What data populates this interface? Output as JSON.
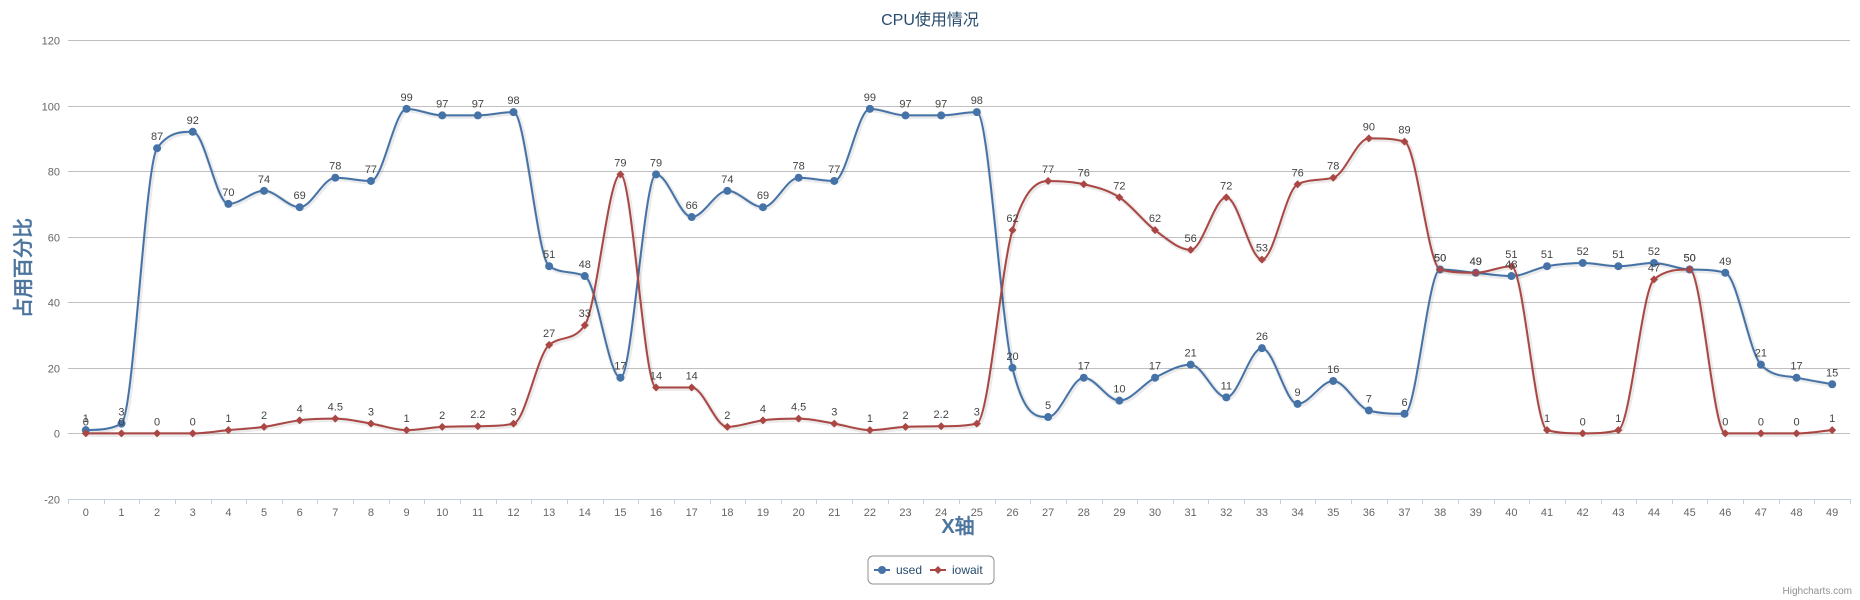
{
  "credits": "Highcharts.com",
  "chart_data": {
    "type": "line",
    "title": "CPU使用情况",
    "xlabel": "X轴",
    "ylabel": "占用百分比",
    "ylim": [
      -20,
      120
    ],
    "yticks": [
      -20,
      0,
      20,
      40,
      60,
      80,
      100,
      120
    ],
    "categories": [
      "0",
      "1",
      "2",
      "3",
      "4",
      "5",
      "6",
      "7",
      "8",
      "9",
      "10",
      "11",
      "12",
      "13",
      "14",
      "15",
      "16",
      "17",
      "18",
      "19",
      "20",
      "21",
      "22",
      "23",
      "24",
      "25",
      "26",
      "27",
      "28",
      "29",
      "30",
      "31",
      "32",
      "33",
      "34",
      "35",
      "36",
      "37",
      "38",
      "39",
      "40",
      "41",
      "42",
      "43",
      "44",
      "45",
      "46",
      "47",
      "48",
      "49"
    ],
    "grid": true,
    "legend_position": "bottom-center",
    "series": [
      {
        "name": "used",
        "color": "#4572a7",
        "marker": "circle",
        "values": [
          1,
          3,
          87,
          92,
          70,
          74,
          69,
          78,
          77,
          99,
          97,
          97,
          98,
          51,
          48,
          17,
          79,
          66,
          74,
          69,
          78,
          77,
          99,
          97,
          97,
          98,
          20,
          5,
          17,
          10,
          17,
          21,
          11,
          26,
          9,
          16,
          7,
          6,
          50,
          49,
          48,
          51,
          52,
          51,
          52,
          50,
          49,
          21,
          17,
          15
        ],
        "labels": [
          "1",
          "3",
          "87",
          "92",
          "70",
          "74",
          "69",
          "78",
          "77",
          "99",
          "97",
          "97",
          "98",
          "51",
          "48",
          "17",
          "79",
          "66",
          "74",
          "69",
          "78",
          "77",
          "99",
          "97",
          "97",
          "98",
          "20",
          "5",
          "17",
          "10",
          "17",
          "21",
          "11",
          "26",
          "9",
          "16",
          "7",
          "6",
          "50",
          "49",
          "48",
          "51",
          "52",
          "51",
          "52",
          "50",
          "49",
          "21",
          "17",
          "15"
        ]
      },
      {
        "name": "iowait",
        "color": "#aa4643",
        "marker": "diamond",
        "values": [
          0,
          0,
          0,
          0,
          1,
          2,
          4,
          4.5,
          3,
          1,
          2,
          2.2,
          3,
          27,
          33,
          79,
          14,
          14,
          2,
          4,
          4.5,
          3,
          1,
          2,
          2.2,
          3,
          62,
          77,
          76,
          72,
          62,
          56,
          72,
          53,
          76,
          78,
          90,
          89,
          50,
          49,
          51,
          1,
          0,
          1,
          47,
          50,
          0,
          0,
          0,
          1
        ],
        "labels": [
          "0",
          "0",
          "0",
          "0",
          "1",
          "2",
          "4",
          "4.5",
          "3",
          "1",
          "2",
          "2.2",
          "3",
          "27",
          "33",
          "79",
          "14",
          "14",
          "2",
          "4",
          "4.5",
          "3",
          "1",
          "2",
          "2.2",
          "3",
          "62",
          "77",
          "76",
          "72",
          "62",
          "56",
          "72",
          "53",
          "76",
          "78",
          "90",
          "89",
          "50",
          "49",
          "51",
          "1",
          "0",
          "1",
          "47",
          "50",
          "0",
          "0",
          "0",
          "1"
        ]
      }
    ]
  }
}
